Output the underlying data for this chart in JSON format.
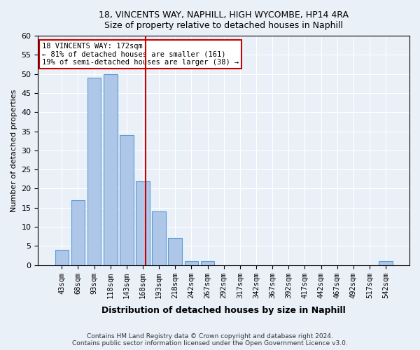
{
  "title": "18, VINCENTS WAY, NAPHILL, HIGH WYCOMBE, HP14 4RA",
  "subtitle": "Size of property relative to detached houses in Naphill",
  "xlabel": "Distribution of detached houses by size in Naphill",
  "ylabel": "Number of detached properties",
  "bar_labels": [
    "43sqm",
    "68sqm",
    "93sqm",
    "118sqm",
    "143sqm",
    "168sqm",
    "193sqm",
    "218sqm",
    "242sqm",
    "267sqm",
    "292sqm",
    "317sqm",
    "342sqm",
    "367sqm",
    "392sqm",
    "417sqm",
    "442sqm",
    "467sqm",
    "492sqm",
    "517sqm",
    "542sqm"
  ],
  "bar_values": [
    4,
    17,
    49,
    50,
    34,
    22,
    14,
    7,
    1,
    1,
    0,
    0,
    0,
    0,
    0,
    0,
    0,
    0,
    0,
    0,
    1
  ],
  "bar_color": "#aec6e8",
  "bar_edge_color": "#5b9bd5",
  "ylim": [
    0,
    60
  ],
  "yticks": [
    0,
    5,
    10,
    15,
    20,
    25,
    30,
    35,
    40,
    45,
    50,
    55,
    60
  ],
  "vline_x": 5.2,
  "vline_color": "#cc0000",
  "annotation_text": "18 VINCENTS WAY: 172sqm\n← 81% of detached houses are smaller (161)\n19% of semi-detached houses are larger (38) →",
  "annotation_box_color": "#ffffff",
  "annotation_box_edge": "#cc0000",
  "footer_line1": "Contains HM Land Registry data © Crown copyright and database right 2024.",
  "footer_line2": "Contains public sector information licensed under the Open Government Licence v3.0.",
  "background_color": "#eaf0f8",
  "plot_bg_color": "#eaf0f8"
}
